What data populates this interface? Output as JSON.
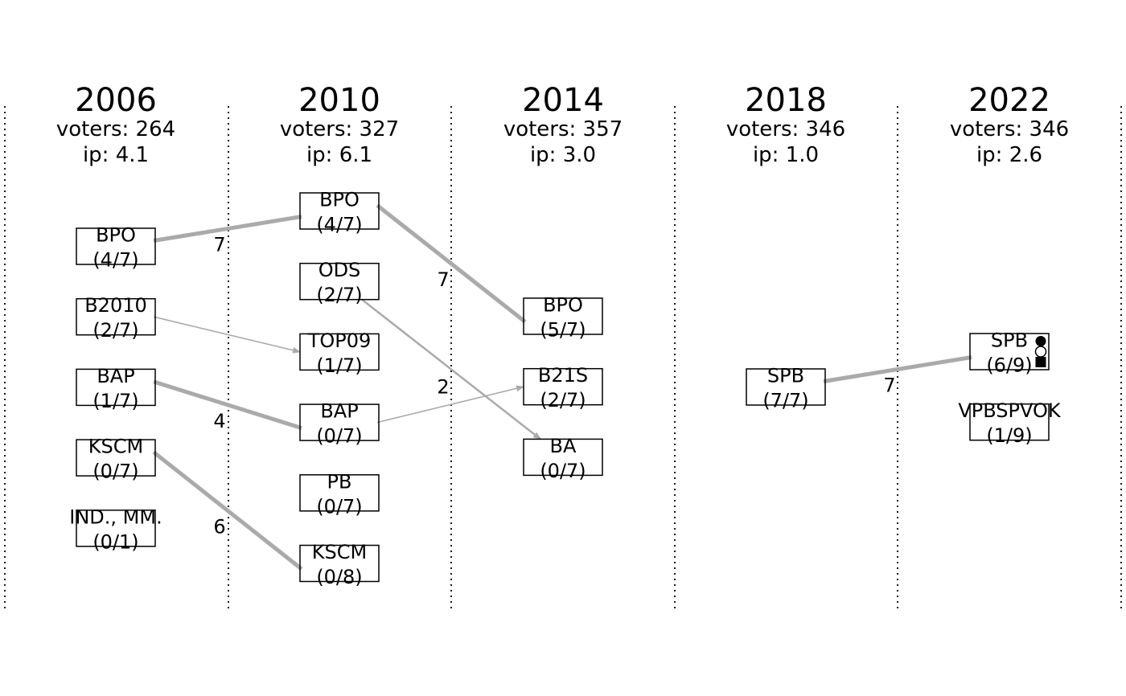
{
  "elections": [
    {
      "year": "2006",
      "voters": "voters: 264",
      "ip": "ip: 4.1",
      "parties": [
        {
          "name": "BPO",
          "share": "(4/7)"
        },
        {
          "name": "B2010",
          "share": "(2/7)"
        },
        {
          "name": "BAP",
          "share": "(1/7)"
        },
        {
          "name": "KSCM",
          "share": "(0/7)"
        },
        {
          "name": "IND., MM.",
          "share": "(0/1)"
        }
      ]
    },
    {
      "year": "2010",
      "voters": "voters: 327",
      "ip": "ip: 6.1",
      "parties": [
        {
          "name": "BPO",
          "share": "(4/7)"
        },
        {
          "name": "ODS",
          "share": "(2/7)"
        },
        {
          "name": "TOP09",
          "share": "(1/7)"
        },
        {
          "name": "BAP",
          "share": "(0/7)"
        },
        {
          "name": "PB",
          "share": "(0/7)"
        },
        {
          "name": "KSCM",
          "share": "(0/8)"
        }
      ]
    },
    {
      "year": "2014",
      "voters": "voters: 357",
      "ip": "ip: 3.0",
      "parties": [
        {
          "name": "BPO",
          "share": "(5/7)"
        },
        {
          "name": "B21S",
          "share": "(2/7)"
        },
        {
          "name": "BA",
          "share": "(0/7)"
        }
      ]
    },
    {
      "year": "2018",
      "voters": "voters: 346",
      "ip": "ip: 1.0",
      "parties": [
        {
          "name": "SPB",
          "share": "(7/7)"
        }
      ]
    },
    {
      "year": "2022",
      "voters": "voters: 346",
      "ip": "ip: 2.6",
      "parties": [
        {
          "name": "SPB",
          "share": "(6/9)",
          "markers": [
            "circle-filled",
            "circle-open",
            "square-filled"
          ]
        },
        {
          "name": "VPBSPVOK",
          "share": "(1/9)"
        }
      ]
    }
  ],
  "flows": [
    {
      "from": [
        0,
        0
      ],
      "to": [
        1,
        0
      ],
      "label": "7",
      "weight": 7,
      "arrow": false
    },
    {
      "from": [
        0,
        1
      ],
      "to": [
        1,
        2
      ],
      "label": "",
      "weight": 1,
      "arrow": true
    },
    {
      "from": [
        0,
        2
      ],
      "to": [
        1,
        3
      ],
      "label": "4",
      "weight": 4,
      "arrow": false
    },
    {
      "from": [
        0,
        3
      ],
      "to": [
        1,
        5
      ],
      "label": "6",
      "weight": 6,
      "arrow": false
    },
    {
      "from": [
        1,
        0
      ],
      "to": [
        2,
        0
      ],
      "label": "7",
      "weight": 7,
      "arrow": false
    },
    {
      "from": [
        1,
        1
      ],
      "to": [
        2,
        2
      ],
      "label": "2",
      "weight": 2,
      "arrow": true
    },
    {
      "from": [
        1,
        3
      ],
      "to": [
        2,
        1
      ],
      "label": "",
      "weight": 1,
      "arrow": true
    },
    {
      "from": [
        3,
        0
      ],
      "to": [
        4,
        0
      ],
      "label": "7",
      "weight": 7,
      "arrow": false
    }
  ]
}
